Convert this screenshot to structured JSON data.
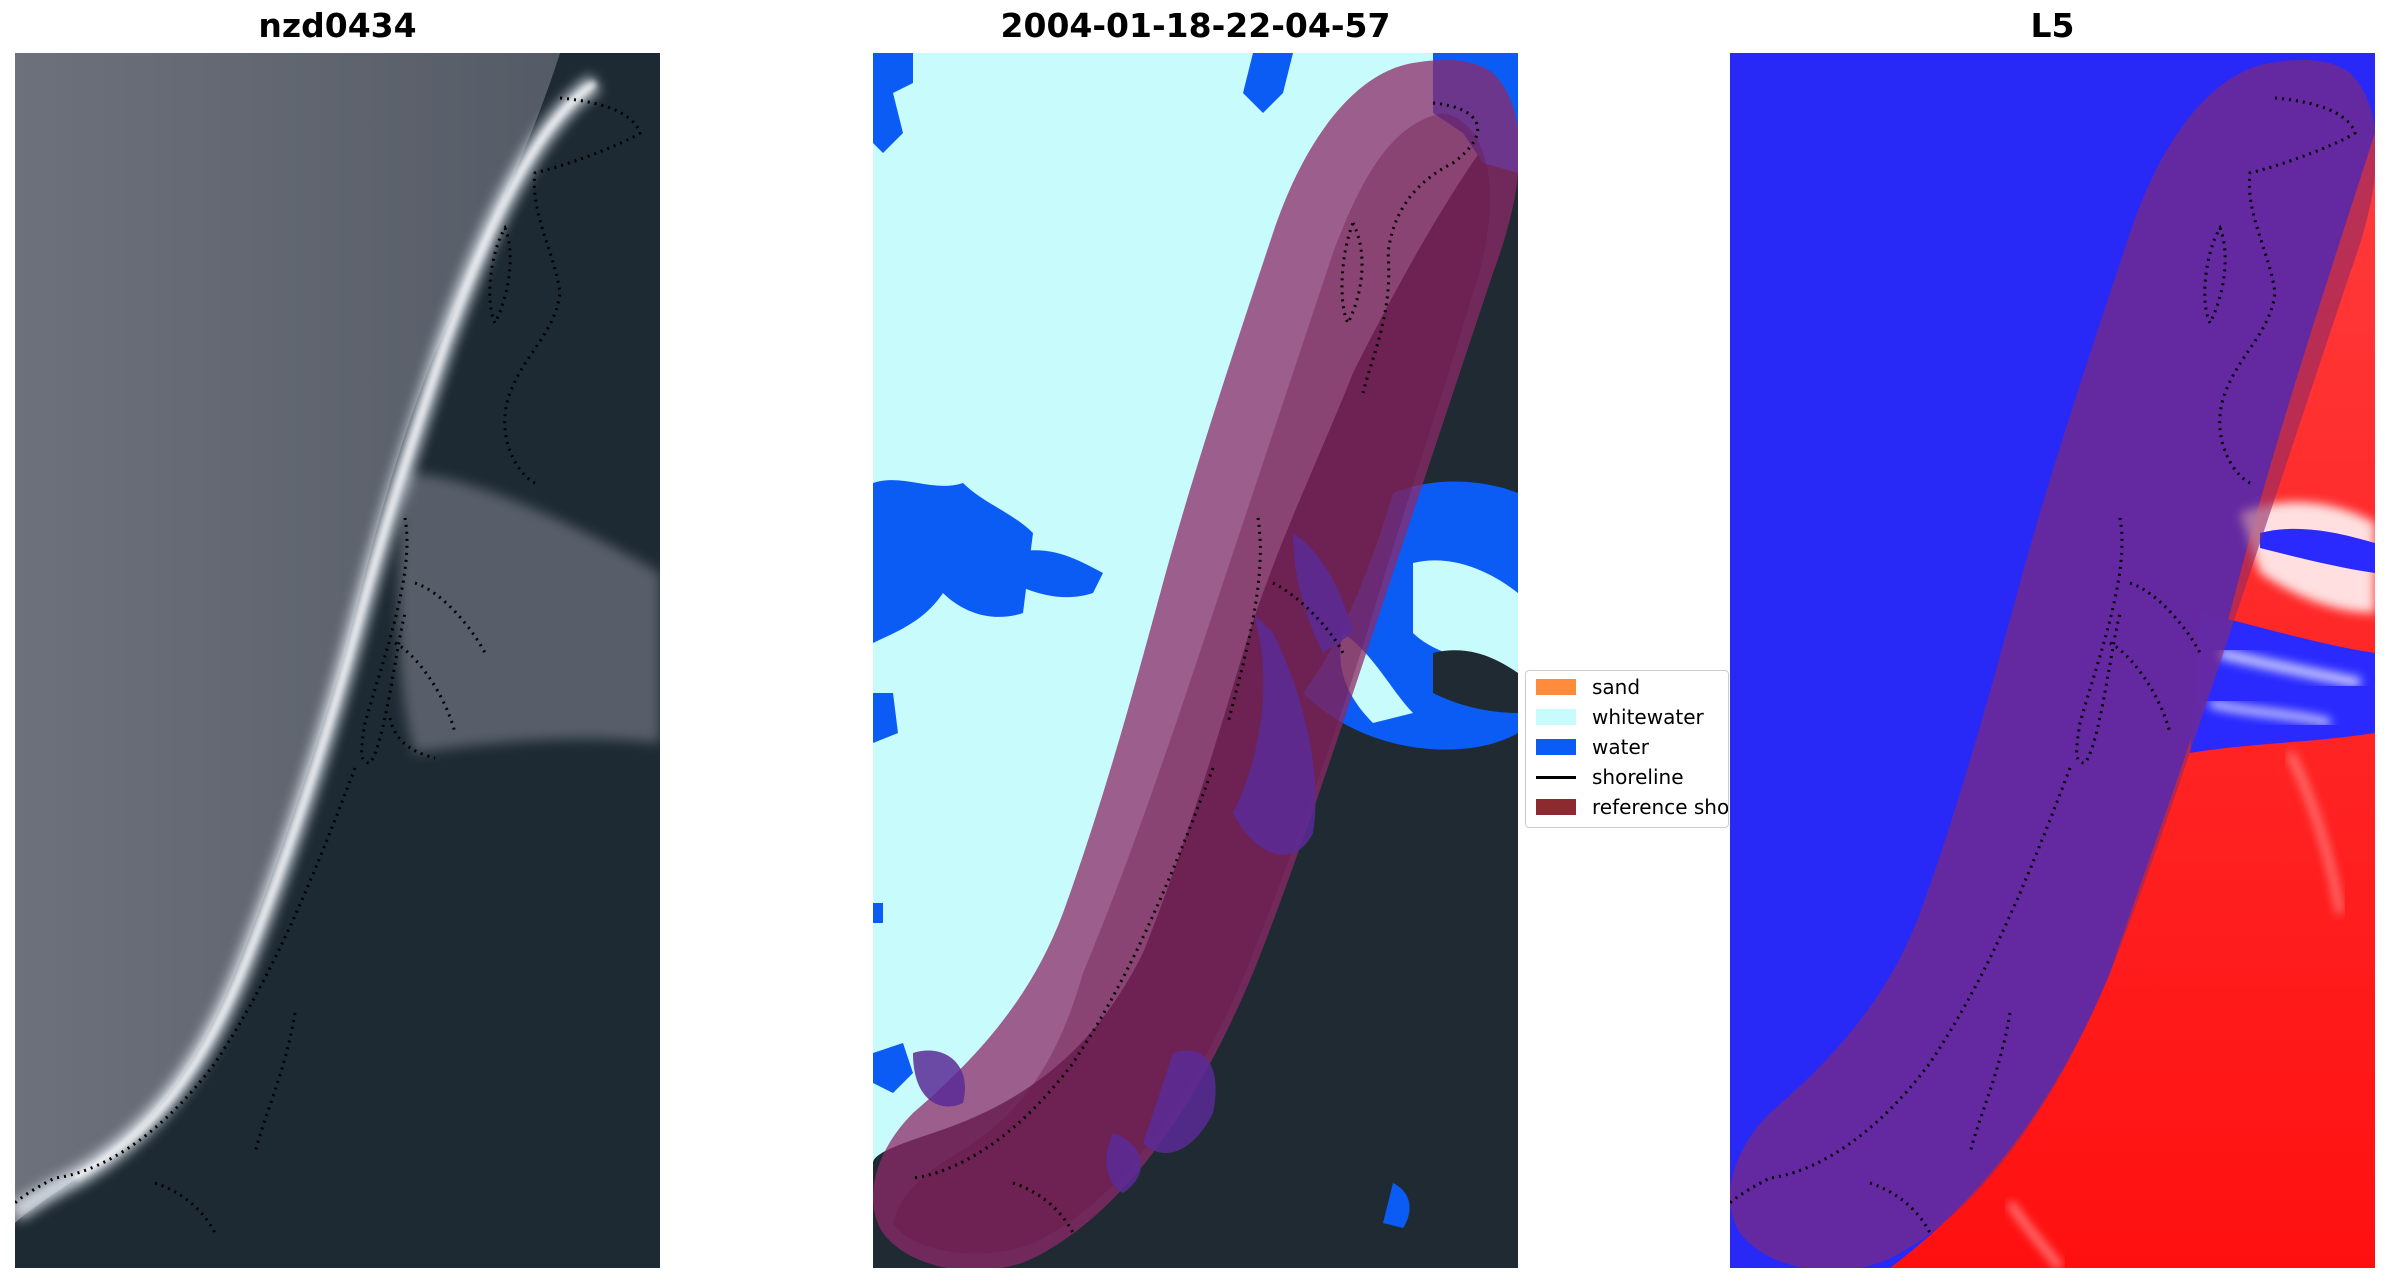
{
  "panels": [
    {
      "title": "nzd0434"
    },
    {
      "title": "2004-01-18-22-04-57"
    },
    {
      "title": "L5"
    }
  ],
  "legend": {
    "items": [
      {
        "label": "sand",
        "color": "#ff8c3a"
      },
      {
        "label": "whitewater",
        "color": "#c8fbfb"
      },
      {
        "label": "water",
        "color": "#0a5cf5"
      },
      {
        "label": "shoreline",
        "color": "#000000"
      },
      {
        "label": "reference shoreline",
        "color": "#8c2a2f"
      }
    ]
  },
  "colors": {
    "ocean_gray": "#5f6470",
    "land_dark": "#1f2a33",
    "foam": "#e8eef5",
    "buffer_purple": "#9b5a8c",
    "buffer_dark": "#6b1e45",
    "index_blue": "#2a2aff",
    "index_red": "#ff2020"
  }
}
